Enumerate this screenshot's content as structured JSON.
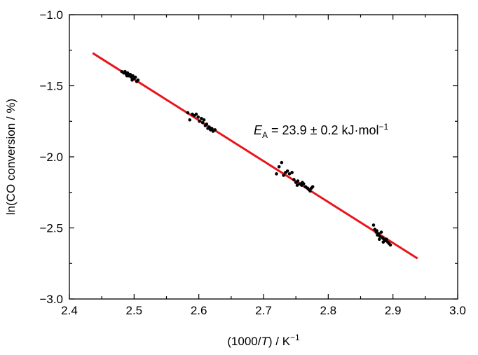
{
  "chart_data": {
    "type": "scatter",
    "xlabel": {
      "pre": "(1000/",
      "italic": "T",
      "mid": ") / K",
      "sup": "−1"
    },
    "ylabel": "ln(CO conversion / %)",
    "xlim": [
      2.4,
      3.0
    ],
    "ylim": [
      -3.0,
      -1.0
    ],
    "x_ticks": [
      "2.4",
      "2.5",
      "2.6",
      "2.7",
      "2.8",
      "2.9",
      "3.0"
    ],
    "y_ticks": [
      "−1.0",
      "−1.5",
      "−2.0",
      "−2.5",
      "−3.0"
    ],
    "annotation": {
      "e": "E",
      "sub": "A",
      "text": " = 23.9 ± 0.2 kJ·mol",
      "sup": "−1"
    },
    "fit_line": {
      "color": "#e8141b",
      "x": [
        2.436,
        2.938
      ],
      "y": [
        -1.27,
        -2.715
      ]
    },
    "series": [
      {
        "marker_color": "#000000",
        "points": [
          [
            2.481,
            -1.4
          ],
          [
            2.484,
            -1.41
          ],
          [
            2.486,
            -1.4
          ],
          [
            2.488,
            -1.42
          ],
          [
            2.49,
            -1.41
          ],
          [
            2.492,
            -1.43
          ],
          [
            2.494,
            -1.42
          ],
          [
            2.496,
            -1.44
          ],
          [
            2.498,
            -1.43
          ],
          [
            2.5,
            -1.45
          ],
          [
            2.502,
            -1.44
          ],
          [
            2.504,
            -1.47
          ],
          [
            2.506,
            -1.46
          ],
          [
            2.489,
            -1.43
          ],
          [
            2.497,
            -1.46
          ],
          [
            2.583,
            -1.69
          ],
          [
            2.586,
            -1.74
          ],
          [
            2.59,
            -1.7
          ],
          [
            2.593,
            -1.71
          ],
          [
            2.596,
            -1.7
          ],
          [
            2.599,
            -1.72
          ],
          [
            2.601,
            -1.75
          ],
          [
            2.604,
            -1.73
          ],
          [
            2.606,
            -1.76
          ],
          [
            2.608,
            -1.74
          ],
          [
            2.61,
            -1.78
          ],
          [
            2.612,
            -1.77
          ],
          [
            2.614,
            -1.8
          ],
          [
            2.616,
            -1.79
          ],
          [
            2.618,
            -1.81
          ],
          [
            2.62,
            -1.8
          ],
          [
            2.622,
            -1.82
          ],
          [
            2.625,
            -1.81
          ],
          [
            2.72,
            -2.12
          ],
          [
            2.724,
            -2.07
          ],
          [
            2.728,
            -2.04
          ],
          [
            2.731,
            -2.13
          ],
          [
            2.734,
            -2.11
          ],
          [
            2.737,
            -2.1
          ],
          [
            2.74,
            -2.12
          ],
          [
            2.744,
            -2.11
          ],
          [
            2.747,
            -2.16
          ],
          [
            2.75,
            -2.18
          ],
          [
            2.753,
            -2.17
          ],
          [
            2.756,
            -2.19
          ],
          [
            2.759,
            -2.2
          ],
          [
            2.762,
            -2.19
          ],
          [
            2.765,
            -2.21
          ],
          [
            2.768,
            -2.22
          ],
          [
            2.77,
            -2.23
          ],
          [
            2.772,
            -2.24
          ],
          [
            2.774,
            -2.22
          ],
          [
            2.776,
            -2.21
          ],
          [
            2.76,
            -2.18
          ],
          [
            2.752,
            -2.2
          ],
          [
            2.87,
            -2.48
          ],
          [
            2.872,
            -2.51
          ],
          [
            2.874,
            -2.53
          ],
          [
            2.876,
            -2.55
          ],
          [
            2.878,
            -2.54
          ],
          [
            2.88,
            -2.56
          ],
          [
            2.882,
            -2.53
          ],
          [
            2.884,
            -2.57
          ],
          [
            2.886,
            -2.58
          ],
          [
            2.888,
            -2.59
          ],
          [
            2.89,
            -2.58
          ],
          [
            2.892,
            -2.6
          ],
          [
            2.894,
            -2.61
          ],
          [
            2.896,
            -2.62
          ],
          [
            2.885,
            -2.6
          ],
          [
            2.875,
            -2.52
          ],
          [
            2.879,
            -2.58
          ]
        ]
      }
    ]
  }
}
